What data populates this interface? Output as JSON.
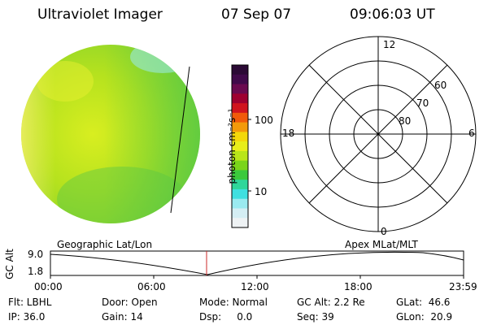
{
  "header": {
    "instrument": "Ultraviolet Imager",
    "date": "07 Sep 07",
    "time": "09:06:03 UT"
  },
  "colorbar": {
    "unit_label": "photon cm⁻²s⁻¹",
    "ticks": [
      "100",
      "10"
    ],
    "colors": [
      "#2b0a35",
      "#400a4a",
      "#6a0a4f",
      "#9e0030",
      "#d0141e",
      "#f05a0a",
      "#f39a0a",
      "#f3d80a",
      "#e8ee1a",
      "#b9e51a",
      "#7ad41a",
      "#3bc93c",
      "#2fd79a",
      "#3fe0e0",
      "#9aeaf0",
      "#d4eef4",
      "#eef2f4"
    ]
  },
  "polar": {
    "local_time_labels": [
      "12",
      "18",
      "6",
      "0"
    ],
    "latitude_labels": [
      "60",
      "70",
      "80"
    ]
  },
  "timeline": {
    "left_label": "Geographic Lat/Lon",
    "right_label": "Apex MLat/MLT",
    "axis_label": "GC Alt",
    "y_ticks": [
      "9.0",
      "1.8"
    ],
    "x_ticks": [
      "00:00",
      "06:00",
      "12:00",
      "18:00",
      "23:59"
    ]
  },
  "info": {
    "flt": "Flt: LBHL",
    "ip": "IP: 36.0",
    "door": "Door: Open",
    "gain": "Gain: 14",
    "mode": "Mode: Normal",
    "dsp": "Dsp:     0.0",
    "gcalt": "GC Alt: 2.2 Re",
    "seq": "Seq: 39",
    "glat": "GLat:  46.6",
    "glon": "GLon:  20.9"
  }
}
